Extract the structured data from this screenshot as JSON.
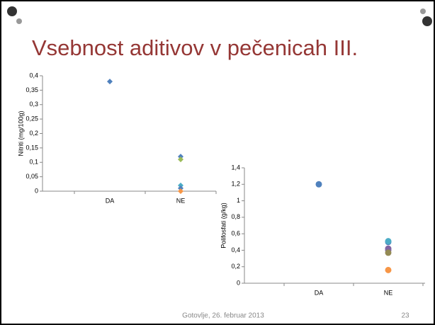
{
  "slide": {
    "title": "Vsebnost aditivov v pečenicah III.",
    "footer": "Gotovlje, 26. februar 2013",
    "page": "23"
  },
  "chart_data": [
    {
      "type": "scatter",
      "categories": [
        "DA",
        "NE"
      ],
      "ylabel": "Nitriti (mg/100g)",
      "marker": "diamond",
      "ylim": [
        0,
        0.4
      ],
      "yticks": [
        0,
        {
          "value": 0.05,
          "label": "0,05"
        },
        {
          "value": 0.1,
          "label": "0,1"
        },
        {
          "value": 0.15,
          "label": "0,15"
        },
        {
          "value": 0.2,
          "label": "0,2"
        },
        {
          "value": 0.25,
          "label": "0,25"
        },
        {
          "value": 0.3,
          "label": "0,3"
        },
        {
          "value": 0.35,
          "label": "0,35"
        },
        {
          "value": 0.4,
          "label": "0,4"
        }
      ],
      "series": [
        {
          "color": "#4f81bd",
          "values": [
            0.38,
            0.12
          ]
        },
        {
          "color": "#9bbb59",
          "values": [
            null,
            0.11
          ]
        },
        {
          "color": "#4bacc6",
          "values": [
            null,
            0.02
          ]
        },
        {
          "color": "#4f81bd",
          "values": [
            null,
            0.01
          ]
        },
        {
          "color": "#f79646",
          "values": [
            null,
            0
          ]
        }
      ]
    },
    {
      "type": "scatter",
      "categories": [
        "DA",
        "NE"
      ],
      "ylabel": "Polifosfati (g/kg)",
      "marker": "circle",
      "ylim": [
        0,
        1.4
      ],
      "yticks": [
        0,
        {
          "value": 0.2,
          "label": "0,2"
        },
        {
          "value": 0.4,
          "label": "0,4"
        },
        {
          "value": 0.6,
          "label": "0,6"
        },
        {
          "value": 0.8,
          "label": "0,8"
        },
        1,
        {
          "value": 1.2,
          "label": "1,2"
        },
        {
          "value": 1.4,
          "label": "1,4"
        }
      ],
      "series": [
        {
          "color": "#4f81bd",
          "values": [
            1.2,
            0.5
          ]
        },
        {
          "color": "#4bacc6",
          "values": [
            null,
            0.51
          ]
        },
        {
          "color": "#8064a2",
          "values": [
            null,
            0.42
          ]
        },
        {
          "color": "#8064a2",
          "values": [
            null,
            0.4
          ]
        },
        {
          "color": "#948a54",
          "values": [
            null,
            0.37
          ]
        },
        {
          "color": "#f79646",
          "values": [
            null,
            0.16
          ]
        }
      ]
    }
  ]
}
